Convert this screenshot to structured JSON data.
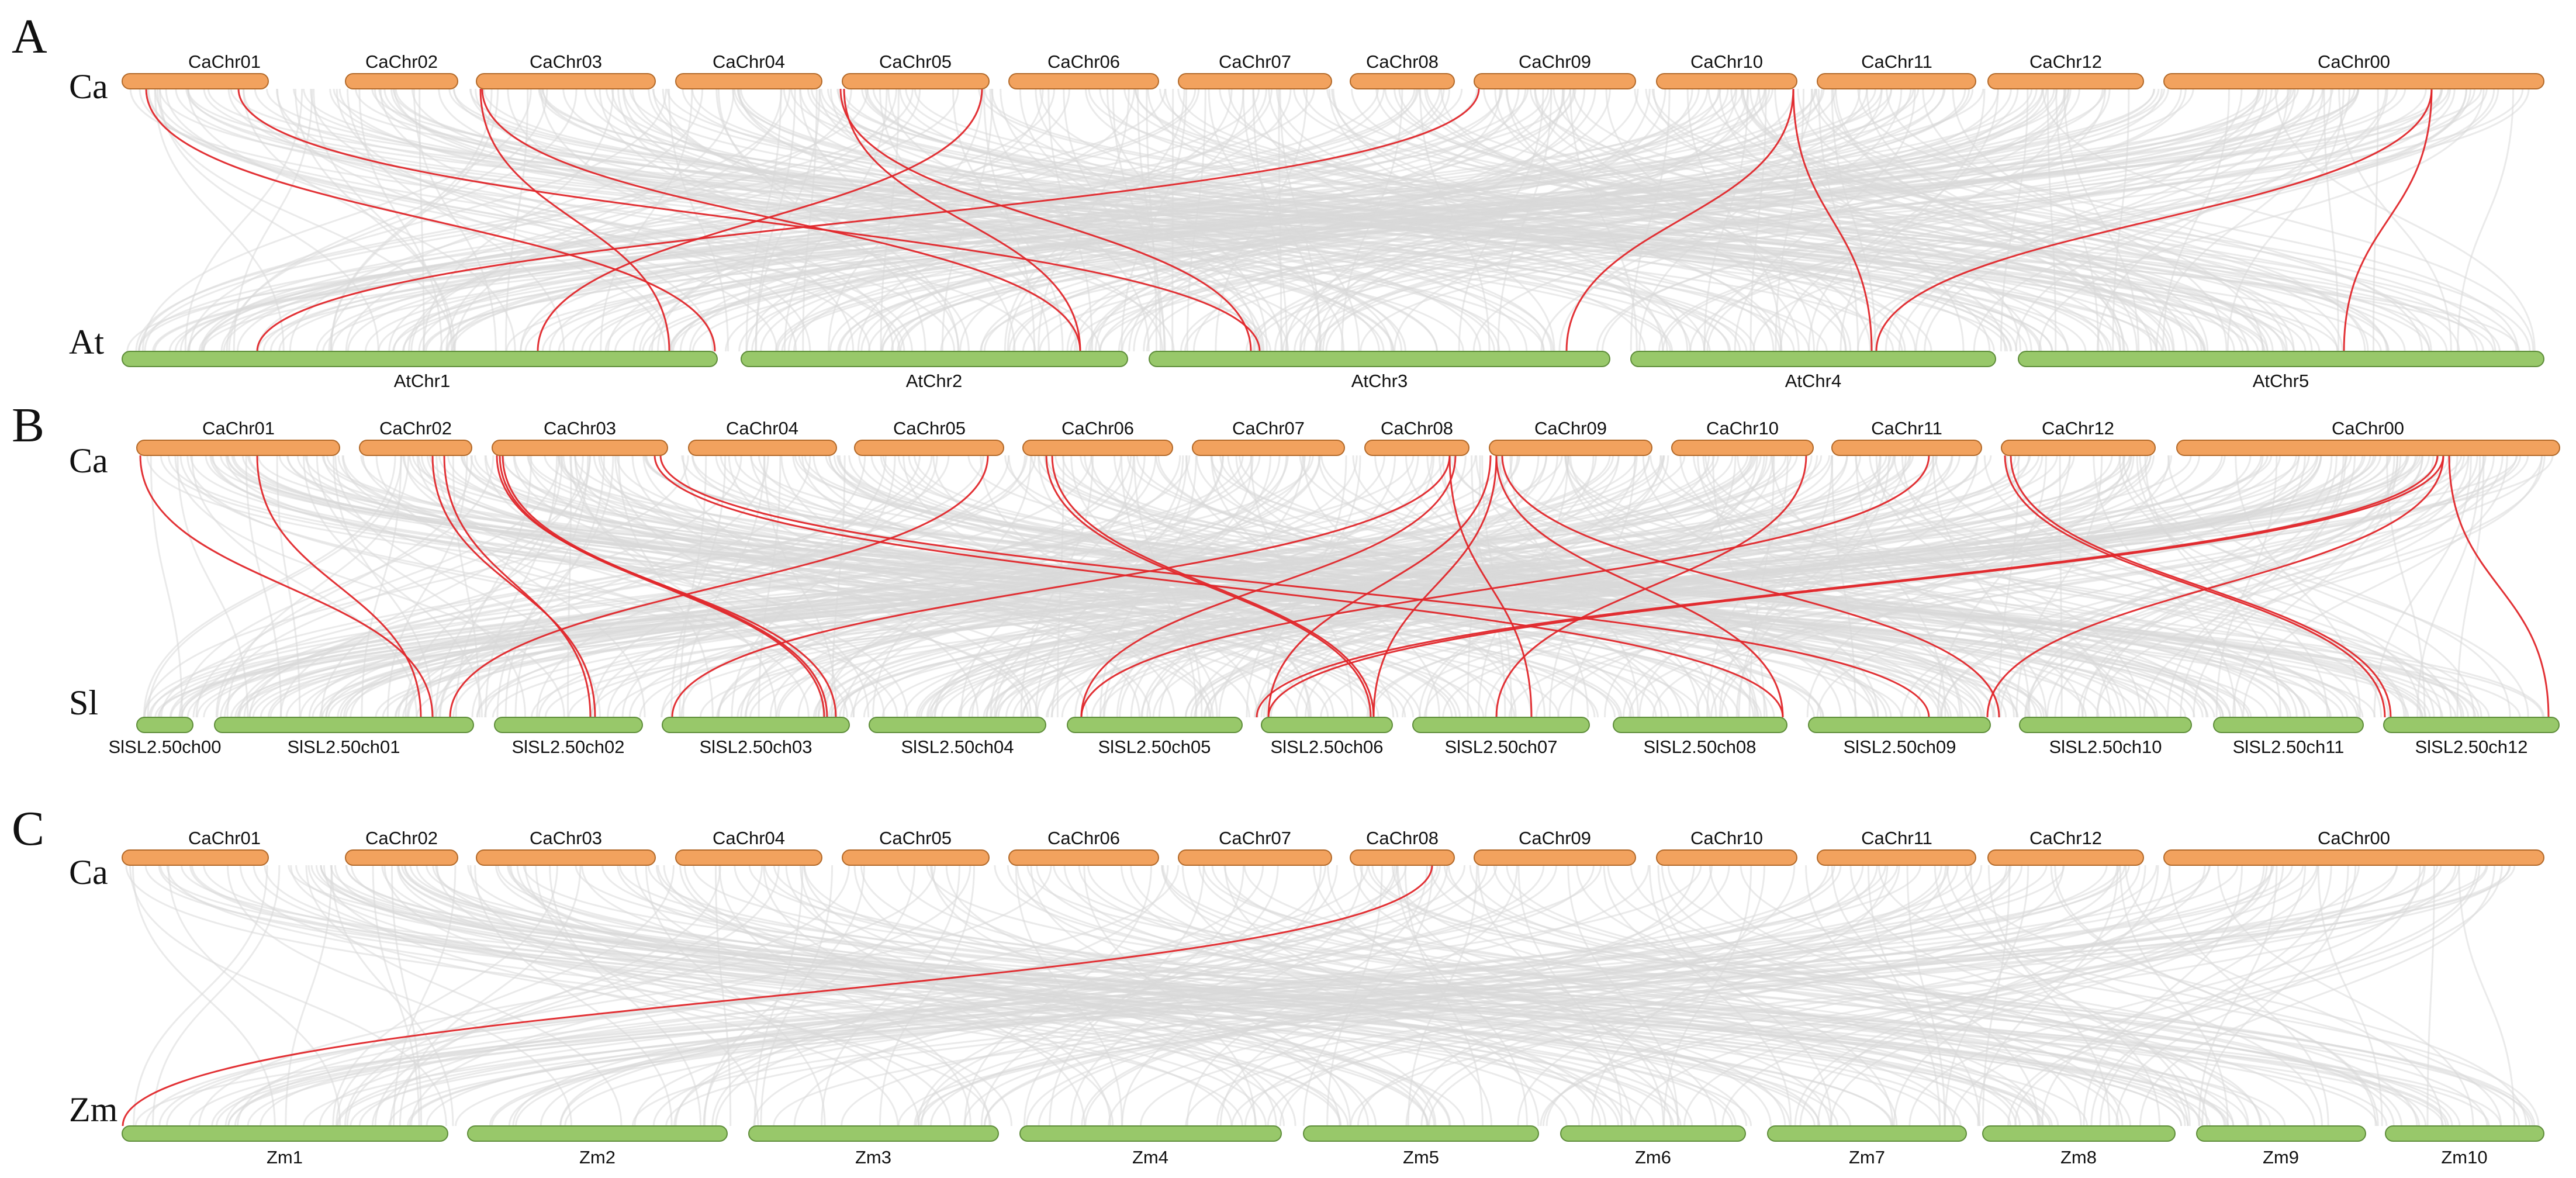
{
  "colors": {
    "top_track": "#f2a25e",
    "top_track_border": "#b36a2a",
    "bottom_track": "#98c86a",
    "bottom_track_border": "#5e8d3a",
    "link_background": "#d8d8d8",
    "link_highlight": "#e0262a"
  },
  "panels": [
    {
      "letter": "A",
      "top_species": "Ca",
      "bottom_species": "At",
      "top_chromosomes": [
        "CaChr01",
        "CaChr02",
        "CaChr03",
        "CaChr04",
        "CaChr05",
        "CaChr06",
        "CaChr07",
        "CaChr08",
        "CaChr09",
        "CaChr10",
        "CaChr11",
        "CaChr12",
        "CaChr00"
      ],
      "bottom_chromosomes": [
        "AtChr1",
        "AtChr2",
        "AtChr3",
        "AtChr4",
        "AtChr5"
      ]
    },
    {
      "letter": "B",
      "top_species": "Ca",
      "bottom_species": "Sl",
      "top_chromosomes": [
        "CaChr01",
        "CaChr02",
        "CaChr03",
        "CaChr04",
        "CaChr05",
        "CaChr06",
        "CaChr07",
        "CaChr08",
        "CaChr09",
        "CaChr10",
        "CaChr11",
        "CaChr12",
        "CaChr00"
      ],
      "bottom_chromosomes": [
        "SlSL2.50ch00",
        "SlSL2.50ch01",
        "SlSL2.50ch02",
        "SlSL2.50ch03",
        "SlSL2.50ch04",
        "SlSL2.50ch05",
        "SlSL2.50ch06",
        "SlSL2.50ch07",
        "SlSL2.50ch08",
        "SlSL2.50ch09",
        "SlSL2.50ch10",
        "SlSL2.50ch11",
        "SlSL2.50ch12"
      ]
    },
    {
      "letter": "C",
      "top_species": "Ca",
      "bottom_species": "Zm",
      "top_chromosomes": [
        "CaChr01",
        "CaChr02",
        "CaChr03",
        "CaChr04",
        "CaChr05",
        "CaChr06",
        "CaChr07",
        "CaChr08",
        "CaChr09",
        "CaChr10",
        "CaChr11",
        "CaChr12",
        "CaChr00"
      ],
      "bottom_chromosomes": [
        "Zm1",
        "Zm2",
        "Zm3",
        "Zm4",
        "Zm5",
        "Zm6",
        "Zm7",
        "Zm8",
        "Zm9",
        "Zm10"
      ]
    }
  ]
}
